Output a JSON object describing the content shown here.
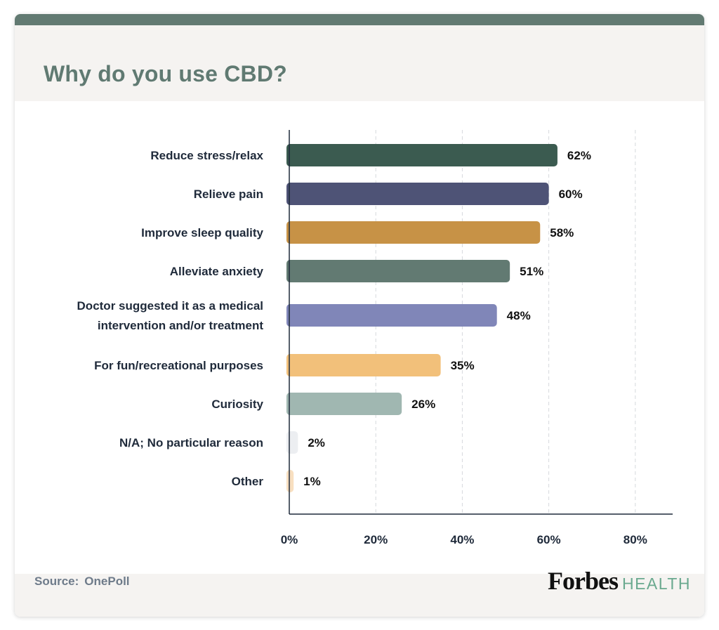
{
  "chart_data": {
    "type": "bar",
    "orientation": "horizontal",
    "title": "Why do you use CBD?",
    "categories": [
      "Reduce stress/relax",
      "Relieve pain",
      "Improve sleep quality",
      "Alleviate anxiety",
      "Doctor suggested it as a medical intervention and/or treatment",
      "For fun/recreational purposes",
      "Curiosity",
      "N/A; No particular reason",
      "Other"
    ],
    "category_lines": [
      [
        "Reduce stress/relax"
      ],
      [
        "Relieve pain"
      ],
      [
        "Improve sleep quality"
      ],
      [
        "Alleviate anxiety"
      ],
      [
        "Doctor suggested it as a medical",
        "intervention and/or treatment"
      ],
      [
        "For fun/recreational purposes"
      ],
      [
        "Curiosity"
      ],
      [
        "N/A; No particular reason"
      ],
      [
        "Other"
      ]
    ],
    "values": [
      62,
      60,
      58,
      51,
      48,
      35,
      26,
      2,
      1
    ],
    "value_labels": [
      "62%",
      "60%",
      "58%",
      "51%",
      "48%",
      "35%",
      "26%",
      "2%",
      "1%"
    ],
    "colors": [
      "#3b5b50",
      "#4e5376",
      "#c79246",
      "#627a72",
      "#8086b8",
      "#f2c07a",
      "#a0b7b1",
      "#eceef1",
      "#f8dfc0"
    ],
    "xlim": [
      0,
      80
    ],
    "xticks": [
      0,
      20,
      40,
      60,
      80
    ],
    "xtick_labels": [
      "0%",
      "20%",
      "40%",
      "60%",
      "80%"
    ],
    "grid": true
  },
  "footer": {
    "source_label": "Source:",
    "source_value": "OnePoll"
  },
  "logo": {
    "brand": "Forbes",
    "section": "HEALTH"
  }
}
